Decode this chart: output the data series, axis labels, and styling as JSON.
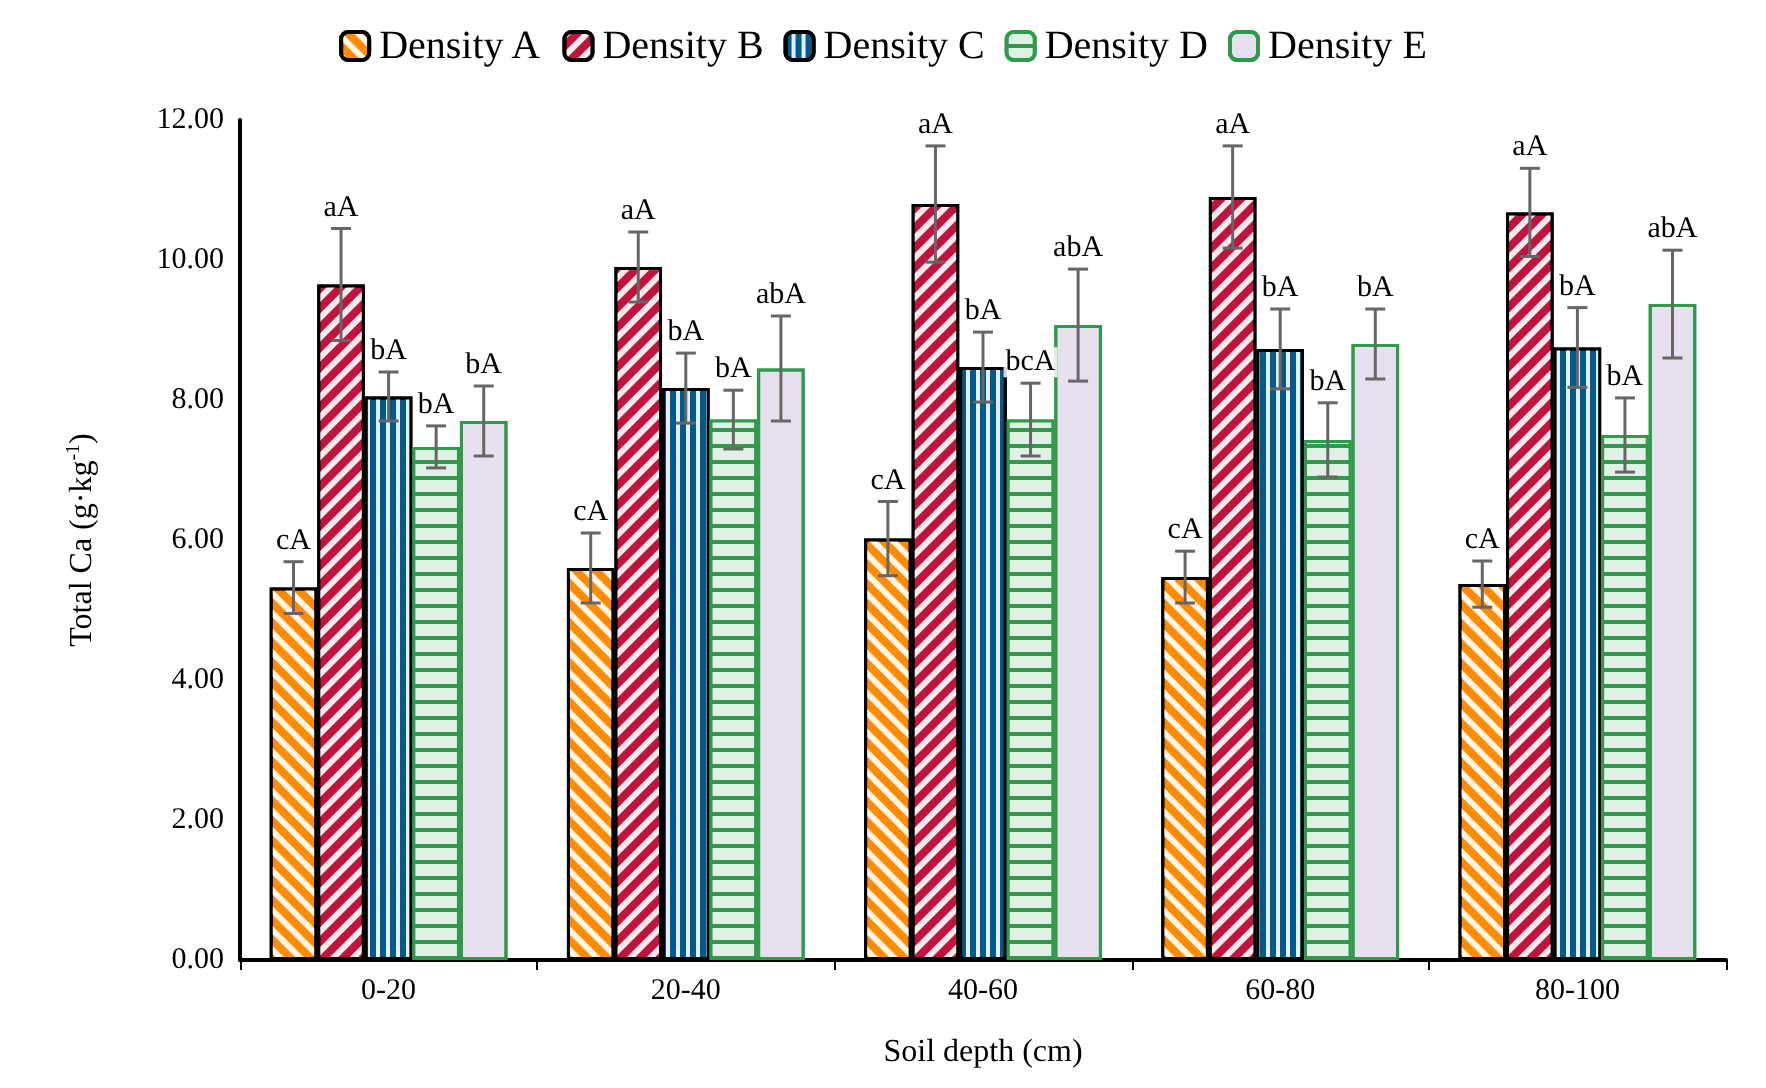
{
  "chart_data": {
    "type": "bar",
    "xlabel": "Soil depth (cm)",
    "ylabel": "Total Ca (g·kg$^{-1}$)",
    "categories": [
      "0-20",
      "20-40",
      "40-60",
      "60-80",
      "80-100"
    ],
    "ylim": [
      0,
      12
    ],
    "yticks": [
      {
        "value": 0,
        "label": "0.00"
      },
      {
        "value": 2,
        "label": "2.00"
      },
      {
        "value": 4,
        "label": "4.00"
      },
      {
        "value": 6,
        "label": "6.00"
      },
      {
        "value": 8,
        "label": "8.00"
      },
      {
        "value": 10,
        "label": "10.00"
      },
      {
        "value": 12,
        "label": "12.00"
      }
    ],
    "grid": false,
    "legend": "top",
    "series": [
      {
        "name": "Density A",
        "color": "#ff8c00",
        "values": [
          5.32,
          5.6,
          6.02,
          5.47,
          5.37
        ],
        "errors": [
          0.37,
          0.5,
          0.53,
          0.37,
          0.33
        ],
        "value_labels": [
          "cA",
          "cA",
          "cA",
          "cA",
          "cA"
        ]
      },
      {
        "name": "Density B",
        "color": "#c0143c",
        "values": [
          9.65,
          9.9,
          10.8,
          10.9,
          10.68
        ],
        "errors": [
          0.8,
          0.5,
          0.83,
          0.73,
          0.63
        ],
        "value_labels": [
          "aA",
          "aA",
          "aA",
          "aA",
          "aA"
        ]
      },
      {
        "name": "Density C",
        "color": "#005a8c",
        "values": [
          8.05,
          8.17,
          8.47,
          8.73,
          8.75
        ],
        "errors": [
          0.35,
          0.5,
          0.5,
          0.57,
          0.57
        ],
        "value_labels": [
          "bA",
          "bA",
          "bA",
          "bA",
          "bA"
        ]
      },
      {
        "name": "Density D",
        "color": "#2e9a4a",
        "values": [
          7.33,
          7.72,
          7.72,
          7.43,
          7.5
        ],
        "errors": [
          0.3,
          0.42,
          0.52,
          0.53,
          0.53
        ],
        "value_labels": [
          "bA",
          "bA",
          "bcA",
          "bA",
          "bA"
        ]
      },
      {
        "name": "Density E",
        "color": "#e6dfee",
        "values": [
          7.7,
          8.45,
          9.07,
          8.8,
          9.37
        ],
        "errors": [
          0.5,
          0.75,
          0.8,
          0.5,
          0.77
        ],
        "value_labels": [
          "bA",
          "abA",
          "abA",
          "bA",
          "abA"
        ]
      }
    ]
  }
}
